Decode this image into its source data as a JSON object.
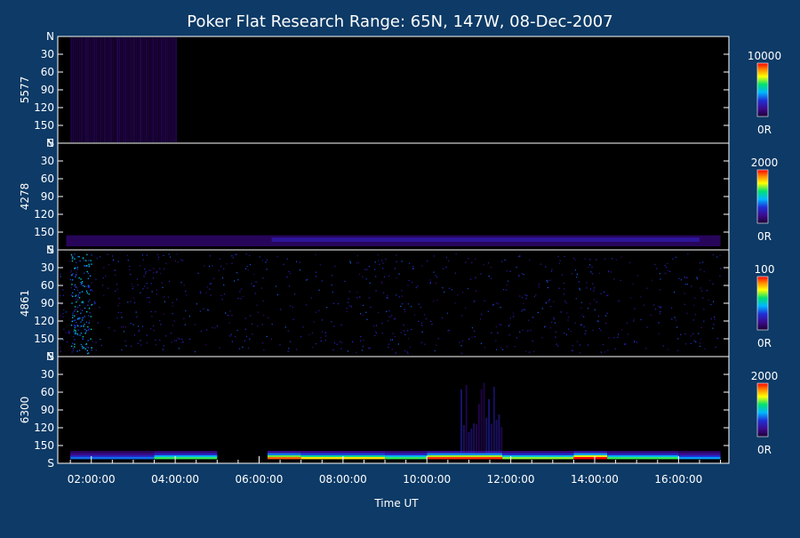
{
  "chart_data": {
    "type": "heatmap",
    "title": "Poker Flat Research Range: 65N, 147W, 08-Dec-2007",
    "xlabel": "Time UT",
    "x_ticks": [
      "02:00:00",
      "04:00:00",
      "06:00:00",
      "08:00:00",
      "10:00:00",
      "12:00:00",
      "14:00:00",
      "16:00:00"
    ],
    "x_range_hours": [
      1.2,
      17.2
    ],
    "y_ticks": [
      "N",
      "30",
      "60",
      "90",
      "120",
      "150",
      "S"
    ],
    "y_range_deg": [
      0,
      180
    ],
    "panels": [
      {
        "label": "5577",
        "colorbar": {
          "max": "10000",
          "min": "0R"
        },
        "features": [
          {
            "type": "faint-vertical-striping",
            "from_hour": 1.5,
            "to_hour": 4.0,
            "intensity": 0.12
          }
        ]
      },
      {
        "label": "4278",
        "colorbar": {
          "max": "2000",
          "min": "0R"
        },
        "features": [
          {
            "type": "faint-band",
            "from_hour": 1.4,
            "to_hour": 17.0,
            "angle": [
              160,
              180
            ],
            "intensity": 0.1
          },
          {
            "type": "faint-band",
            "from_hour": 6.3,
            "to_hour": 16.5,
            "angle": [
              164,
              172
            ],
            "intensity": 0.2
          }
        ]
      },
      {
        "label": "4861",
        "colorbar": {
          "max": "100",
          "min": "0R"
        },
        "features": [
          {
            "type": "noise-speckle",
            "from_hour": 1.2,
            "to_hour": 17.0,
            "intensity": 0.25
          },
          {
            "type": "bright-column",
            "from_hour": 1.5,
            "to_hour": 2.0,
            "intensity": 0.45
          }
        ]
      },
      {
        "label": "6300",
        "colorbar": {
          "max": "2000",
          "min": "0R"
        },
        "features": [
          {
            "type": "horizon-glow",
            "segments": [
              {
                "from_hour": 1.5,
                "to_hour": 3.5,
                "peak": 0.35
              },
              {
                "from_hour": 3.5,
                "to_hour": 5.0,
                "peak": 0.6
              },
              {
                "from_hour": 6.2,
                "to_hour": 7.0,
                "peak": 0.9
              },
              {
                "from_hour": 7.0,
                "to_hour": 9.0,
                "peak": 0.75
              },
              {
                "from_hour": 9.0,
                "to_hour": 10.0,
                "peak": 0.6
              },
              {
                "from_hour": 10.0,
                "to_hour": 11.8,
                "peak": 0.95
              },
              {
                "from_hour": 11.8,
                "to_hour": 13.5,
                "peak": 0.65
              },
              {
                "from_hour": 13.5,
                "to_hour": 14.3,
                "peak": 1.0
              },
              {
                "from_hour": 14.3,
                "to_hour": 16.0,
                "peak": 0.6
              },
              {
                "from_hour": 16.0,
                "to_hour": 17.0,
                "peak": 0.4
              }
            ]
          },
          {
            "type": "vertical-plume",
            "from_hour": 10.8,
            "to_hour": 11.8,
            "intensity": 0.35
          }
        ]
      }
    ],
    "colors": {
      "background": "#0d3a66",
      "plot_background": "#000000",
      "text": "#ffffff",
      "colorscale": [
        "#1a0033",
        "#3b0a8a",
        "#1f2fd6",
        "#00b7ff",
        "#00e070",
        "#ffff00",
        "#ff8a00",
        "#ff0000"
      ]
    }
  }
}
